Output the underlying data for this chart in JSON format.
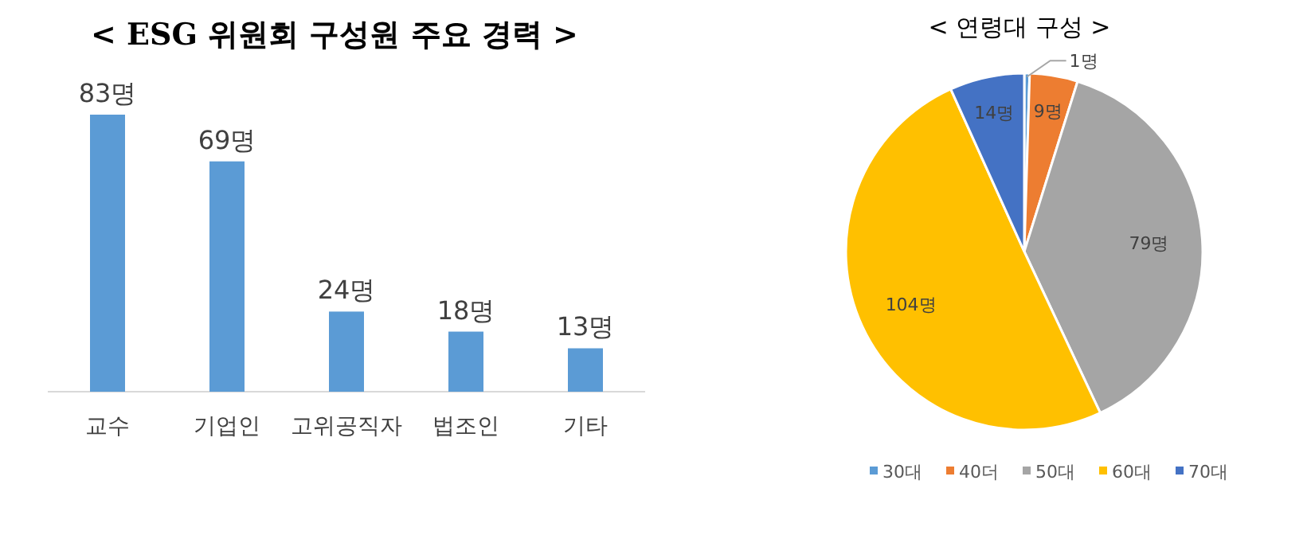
{
  "chart_data": [
    {
      "type": "bar",
      "title": "< ESG 위원회 구성원 주요 경력 >",
      "categories": [
        "교수",
        "기업인",
        "고위공직자",
        "법조인",
        "기타"
      ],
      "values": [
        83,
        69,
        24,
        18,
        13
      ],
      "value_labels": [
        "83명",
        "69명",
        "24명",
        "18명",
        "13명"
      ],
      "color": "#5b9bd5"
    },
    {
      "type": "pie",
      "title": "< 연령대 구성 >",
      "categories": [
        "30대",
        "40더",
        "50대",
        "60대",
        "70대"
      ],
      "values": [
        1,
        9,
        79,
        104,
        14
      ],
      "value_labels": [
        "1명",
        "9명",
        "79명",
        "104명",
        "14명"
      ],
      "colors": [
        "#5b9bd5",
        "#ed7d31",
        "#a5a5a5",
        "#ffc000",
        "#4472c4"
      ],
      "legend": "bottom"
    }
  ]
}
